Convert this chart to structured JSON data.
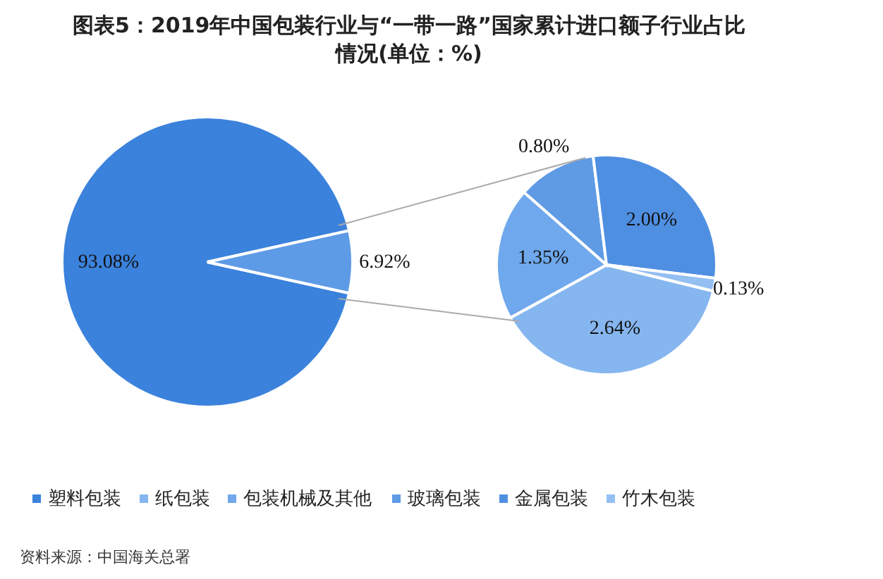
{
  "chart_data": [
    {
      "type": "pie",
      "title": "图表5：2019年中国包装行业与“一带一路”国家累计进口额子行业占比情况(单位：%)",
      "categories": [
        "塑料包装",
        null
      ],
      "values": [
        93.08,
        6.92
      ],
      "colors": [
        "#3b82dc",
        "#5e9be6"
      ],
      "value_labels": [
        "93.08%",
        "6.92%"
      ],
      "legend": "bottom",
      "annotations": [
        "资料来源：中国海关总署"
      ]
    },
    {
      "type": "pie",
      "categories": [
        "纸包装",
        "包装机械及其他",
        "玻璃包装",
        "金属包装",
        "竹木包装"
      ],
      "values": [
        2.64,
        1.35,
        0.8,
        2.0,
        0.13
      ],
      "colors": [
        "#86b6ef",
        "#6fa8ec",
        "#5f9ae4",
        "#4f8fe2",
        "#93bff2"
      ],
      "value_labels": [
        "2.64%",
        "1.35%",
        "0.80%",
        "2.00%",
        "0.13%"
      ],
      "legend": "bottom"
    }
  ]
}
